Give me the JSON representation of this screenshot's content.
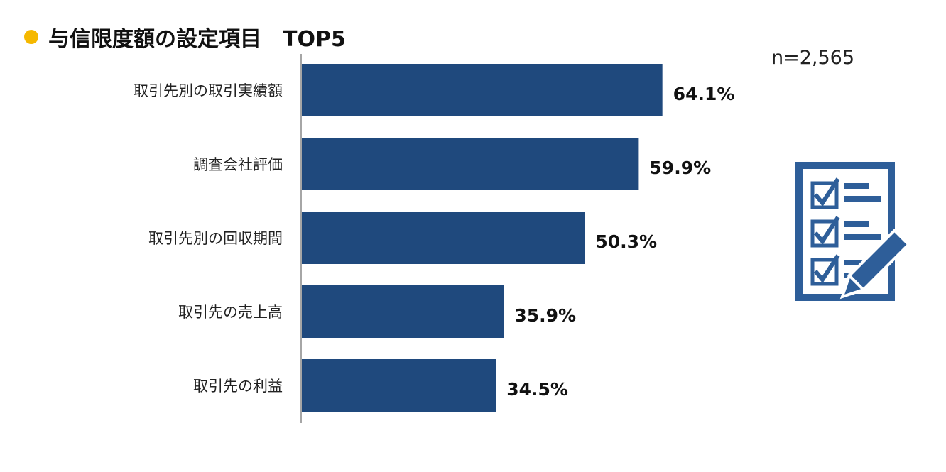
{
  "header": {
    "title": "与信限度額の設定項目　TOP5",
    "sample_size": "n=2,565"
  },
  "colors": {
    "bar": "#1F497D",
    "accent_dot": "#F5B800",
    "axis": "#A6A6A6"
  },
  "icon": "checklist-with-pencil-icon",
  "chart_data": {
    "type": "bar",
    "orientation": "horizontal",
    "categories": [
      "取引先別の取引実績額",
      "調査会社評価",
      "取引先別の回収期間",
      "取引先の売上高",
      "取引先の利益"
    ],
    "values": [
      64.1,
      59.9,
      50.3,
      35.9,
      34.5
    ],
    "value_labels": [
      "64.1%",
      "59.9%",
      "50.3%",
      "35.9%",
      "34.5%"
    ],
    "xlim": [
      0,
      100
    ],
    "grid": false,
    "legend": "none"
  }
}
